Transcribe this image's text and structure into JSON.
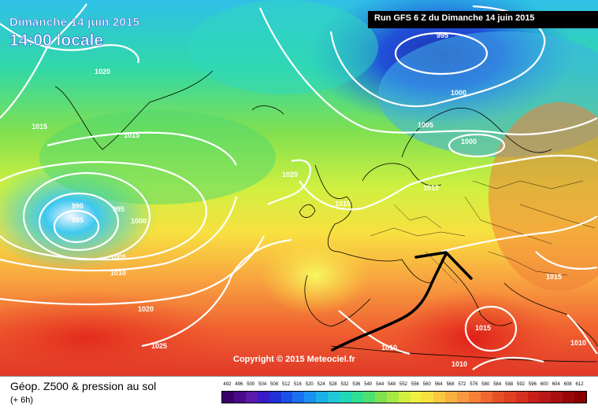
{
  "header": {
    "date": "Dimanche 14 juin 2015",
    "time": "14:00 locale",
    "run": "Run GFS 6 Z du Dimanche 14 juin 2015"
  },
  "copyright": "Copyright © 2015 Meteociel.fr",
  "footer": {
    "title": "Géop. Z500 & pression au sol",
    "subtitle": "(+ 6h)"
  },
  "legend": {
    "values": [
      "492",
      "496",
      "500",
      "504",
      "508",
      "512",
      "516",
      "520",
      "524",
      "528",
      "532",
      "536",
      "540",
      "544",
      "548",
      "552",
      "556",
      "560",
      "564",
      "568",
      "572",
      "576",
      "580",
      "584",
      "588",
      "592",
      "596",
      "600",
      "604",
      "608",
      "612"
    ],
    "colors": [
      "#3a006a",
      "#4a0a8a",
      "#5a1aa8",
      "#3a1ac8",
      "#2030d8",
      "#1a50e8",
      "#1a70f0",
      "#1a90f0",
      "#1ab0e8",
      "#20c8d8",
      "#20d8b8",
      "#30e090",
      "#50e070",
      "#80e050",
      "#a8e840",
      "#d0f040",
      "#f0f040",
      "#f8e040",
      "#f8c840",
      "#f8b040",
      "#f89840",
      "#f88038",
      "#f06830",
      "#e85028",
      "#e04020",
      "#d83020",
      "#c82018",
      "#b81818",
      "#a81010",
      "#980808",
      "#880000"
    ]
  },
  "isobars": [
    {
      "id": "995-north",
      "label": "995"
    },
    {
      "id": "1000-north",
      "label": "1000"
    },
    {
      "id": "1005-north",
      "label": "1005"
    },
    {
      "id": "1000-scand",
      "label": "1000"
    },
    {
      "id": "1010-europe",
      "label": "1010"
    },
    {
      "id": "1020-greenland",
      "label": "1020"
    },
    {
      "id": "1015-west",
      "label": "1015"
    },
    {
      "id": "1015-iceland",
      "label": "1015"
    },
    {
      "id": "1020-mid",
      "label": "1020"
    },
    {
      "id": "1015-uk",
      "label": "1015"
    },
    {
      "id": "990-low",
      "label": "990"
    },
    {
      "id": "985-low",
      "label": "985"
    },
    {
      "id": "995-low",
      "label": "995"
    },
    {
      "id": "1000-low",
      "label": "1000"
    },
    {
      "id": "1005-low",
      "label": "1005"
    },
    {
      "id": "1010-low",
      "label": "1010"
    },
    {
      "id": "1020-south",
      "label": "1020"
    },
    {
      "id": "1025-south",
      "label": "1025"
    },
    {
      "id": "1010-spain",
      "label": "1010"
    },
    {
      "id": "1010-med",
      "label": "1010"
    },
    {
      "id": "1015-med",
      "label": "1015"
    },
    {
      "id": "1015-east",
      "label": "1015"
    },
    {
      "id": "1010-east",
      "label": "1010"
    }
  ]
}
